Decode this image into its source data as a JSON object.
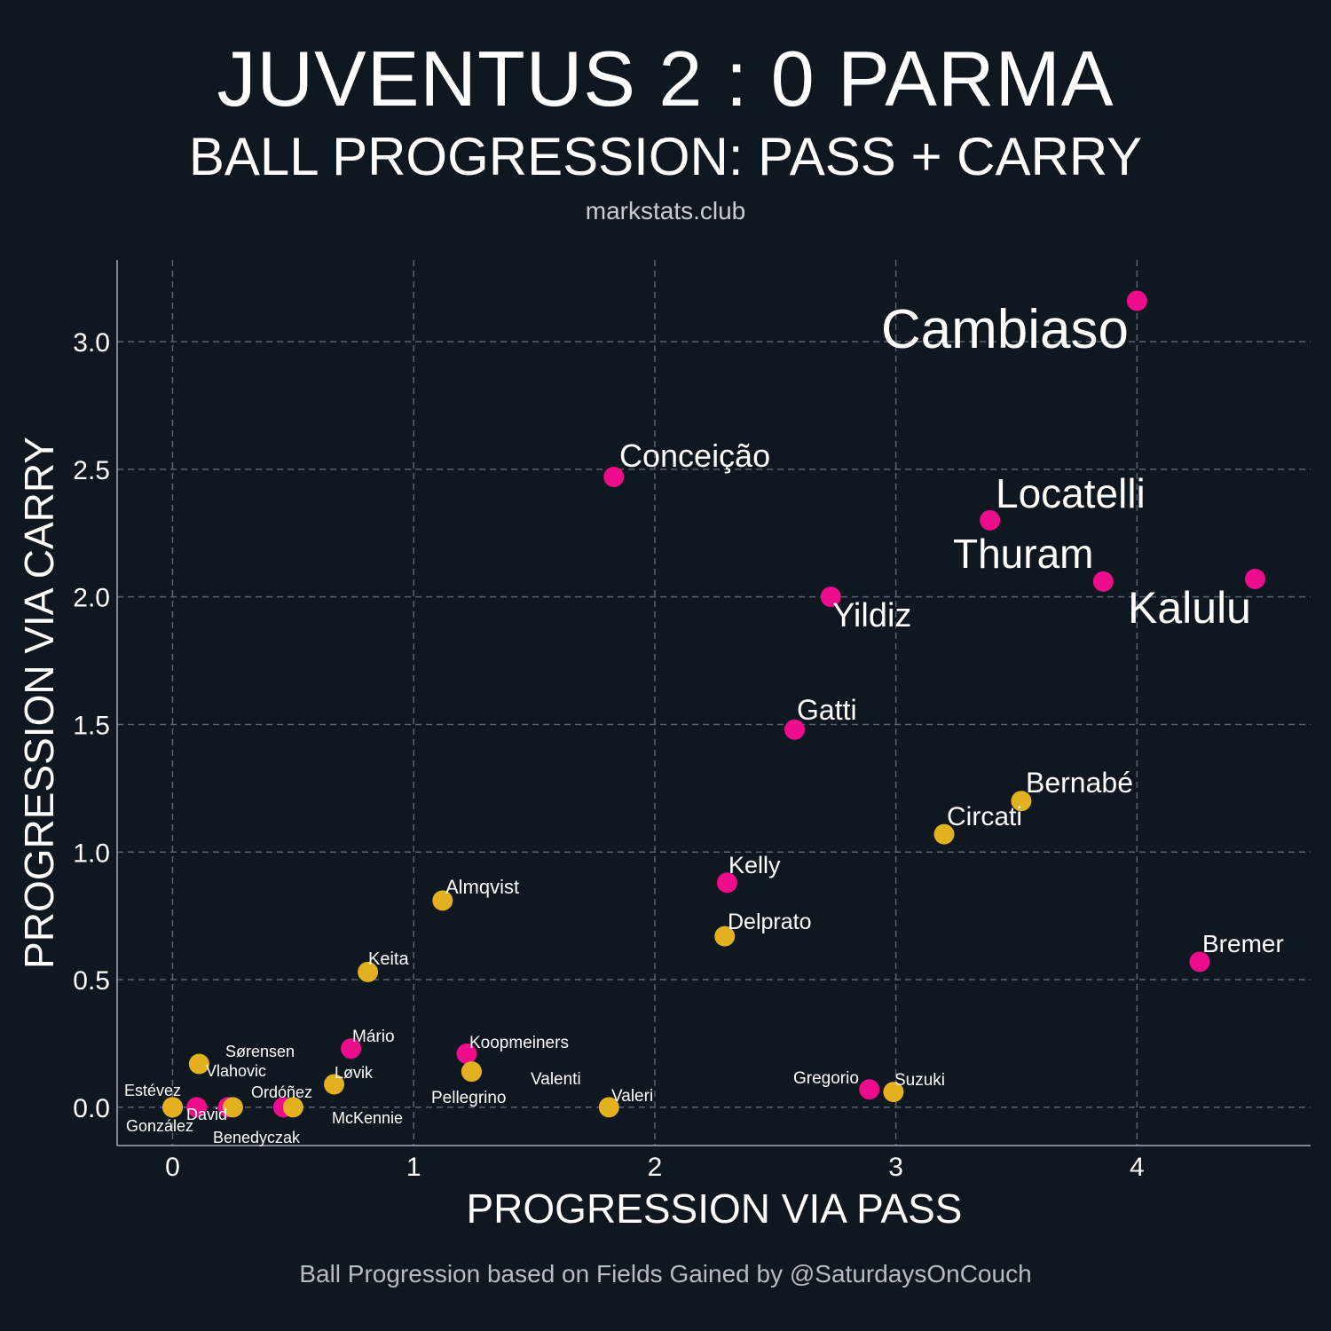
{
  "header": {
    "title": "JUVENTUS 2 : 0 PARMA",
    "subtitle": "BALL PROGRESSION: PASS + CARRY",
    "site": "markstats.club"
  },
  "caption": "Ball Progression based on Fields Gained by @SaturdaysOnCouch",
  "colors": {
    "background": "#0f1720",
    "juventus": "#ec0c8c",
    "parma": "#e3b11f",
    "grid": "#5a6470"
  },
  "chart_data": {
    "type": "scatter",
    "xlabel": "PROGRESSION VIA PASS",
    "ylabel": "PROGRESSION VIA CARRY",
    "xlim": [
      -0.23,
      4.72
    ],
    "ylim": [
      -0.15,
      3.32
    ],
    "xticks": [
      0,
      1,
      2,
      3,
      4
    ],
    "xtick_labels": [
      "0",
      "1",
      "2",
      "3",
      "4"
    ],
    "yticks": [
      0,
      0.5,
      1,
      1.5,
      2,
      2.5,
      3
    ],
    "ytick_labels": [
      "0.0",
      "0.5",
      "1.0",
      "1.5",
      "2.0",
      "2.5",
      "3.0"
    ],
    "grid": true,
    "series": [
      {
        "name": "Juventus",
        "color": "#ec0c8c",
        "points": [
          {
            "label": "Cambiaso",
            "x": 4.0,
            "y": 3.16
          },
          {
            "label": "Conceição",
            "x": 1.83,
            "y": 2.47
          },
          {
            "label": "Locatelli",
            "x": 3.39,
            "y": 2.3
          },
          {
            "label": "Thuram",
            "x": 3.86,
            "y": 2.06
          },
          {
            "label": "Kalulu",
            "x": 4.49,
            "y": 2.07
          },
          {
            "label": "Yildiz",
            "x": 2.73,
            "y": 2.0
          },
          {
            "label": "Gatti",
            "x": 2.58,
            "y": 1.48
          },
          {
            "label": "Kelly",
            "x": 2.3,
            "y": 0.88
          },
          {
            "label": "Bremer",
            "x": 4.26,
            "y": 0.57
          },
          {
            "label": "Mário",
            "x": 0.74,
            "y": 0.23
          },
          {
            "label": "Koopmeiners",
            "x": 1.22,
            "y": 0.21
          },
          {
            "label": "Gregorio",
            "x": 2.89,
            "y": 0.07
          },
          {
            "label": "David",
            "x": 0.1,
            "y": 0.0
          },
          {
            "label": "Vlahovic",
            "x": 0.23,
            "y": 0.0
          },
          {
            "label": "McKennie",
            "x": 0.46,
            "y": 0.0
          }
        ]
      },
      {
        "name": "Parma",
        "color": "#e3b11f",
        "points": [
          {
            "label": "Bernabé",
            "x": 3.52,
            "y": 1.2
          },
          {
            "label": "Circati",
            "x": 3.2,
            "y": 1.07
          },
          {
            "label": "Delprato",
            "x": 2.29,
            "y": 0.67
          },
          {
            "label": "Almqvist",
            "x": 1.12,
            "y": 0.81
          },
          {
            "label": "Keita",
            "x": 0.81,
            "y": 0.53
          },
          {
            "label": "Sørensen",
            "x": 0.11,
            "y": 0.17
          },
          {
            "label": "Løvik",
            "x": 0.67,
            "y": 0.09
          },
          {
            "label": "Valenti",
            "x": 1.24,
            "y": 0.14
          },
          {
            "label": "Pellegrino",
            "x": 1.24,
            "y": 0.14
          },
          {
            "label": "Valeri",
            "x": 1.81,
            "y": 0.0
          },
          {
            "label": "Suzuki",
            "x": 2.99,
            "y": 0.06
          },
          {
            "label": "Estévez",
            "x": 0.0,
            "y": 0.0
          },
          {
            "label": "González",
            "x": 0.0,
            "y": 0.0
          },
          {
            "label": "Benedyczak",
            "x": 0.25,
            "y": 0.0
          },
          {
            "label": "Ordóñez",
            "x": 0.5,
            "y": 0.0
          }
        ]
      }
    ]
  }
}
